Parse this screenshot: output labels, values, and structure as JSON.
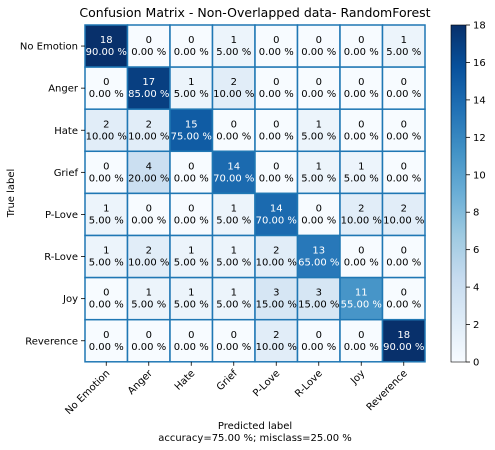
{
  "chart_data": {
    "type": "heatmap",
    "title": "Confusion Matrix - Non-Overlapped data- RandomForest",
    "xlabel": "Predicted label",
    "xlabel_note": "accuracy=75.00 %; misclass=25.00 %",
    "ylabel": "True label",
    "categories": [
      "No Emotion",
      "Anger",
      "Hate",
      "Grief",
      "P-Love",
      "R-Love",
      "Joy",
      "Reverence"
    ],
    "values": [
      [
        18,
        0,
        0,
        1,
        0,
        0,
        0,
        1
      ],
      [
        0,
        17,
        1,
        2,
        0,
        0,
        0,
        0
      ],
      [
        2,
        2,
        15,
        0,
        0,
        1,
        0,
        0
      ],
      [
        0,
        4,
        0,
        14,
        0,
        1,
        1,
        0
      ],
      [
        1,
        0,
        0,
        1,
        14,
        0,
        2,
        2
      ],
      [
        1,
        2,
        1,
        1,
        2,
        13,
        0,
        0
      ],
      [
        0,
        1,
        1,
        1,
        3,
        3,
        11,
        0
      ],
      [
        0,
        0,
        0,
        0,
        2,
        0,
        0,
        18
      ]
    ],
    "percent_labels": [
      [
        "90.00 %",
        "0.00 %",
        "0.00 %",
        "5.00 %",
        "0.00 %",
        "0.00 %",
        "0.00 %",
        "5.00 %"
      ],
      [
        "0.00 %",
        "85.00 %",
        "5.00 %",
        "10.00 %",
        "0.00 %",
        "0.00 %",
        "0.00 %",
        "0.00 %"
      ],
      [
        "10.00 %",
        "10.00 %",
        "75.00 %",
        "0.00 %",
        "0.00 %",
        "5.00 %",
        "0.00 %",
        "0.00 %"
      ],
      [
        "0.00 %",
        "20.00 %",
        "0.00 %",
        "70.00 %",
        "0.00 %",
        "5.00 %",
        "5.00 %",
        "0.00 %"
      ],
      [
        "5.00 %",
        "0.00 %",
        "0.00 %",
        "5.00 %",
        "70.00 %",
        "0.00 %",
        "10.00 %",
        "10.00 %"
      ],
      [
        "5.00 %",
        "10.00 %",
        "5.00 %",
        "5.00 %",
        "10.00 %",
        "65.00 %",
        "0.00 %",
        "0.00 %"
      ],
      [
        "0.00 %",
        "5.00 %",
        "5.00 %",
        "5.00 %",
        "15.00 %",
        "15.00 %",
        "55.00 %",
        "0.00 %"
      ],
      [
        "0.00 %",
        "0.00 %",
        "0.00 %",
        "0.00 %",
        "10.00 %",
        "0.00 %",
        "0.00 %",
        "90.00 %"
      ]
    ],
    "colorbar": {
      "min": 0,
      "max": 18,
      "ticks": [
        0,
        2,
        4,
        6,
        8,
        10,
        12,
        14,
        16,
        18
      ]
    },
    "colormap": "Blues",
    "grid": true,
    "grid_color": "#1f77b4"
  }
}
